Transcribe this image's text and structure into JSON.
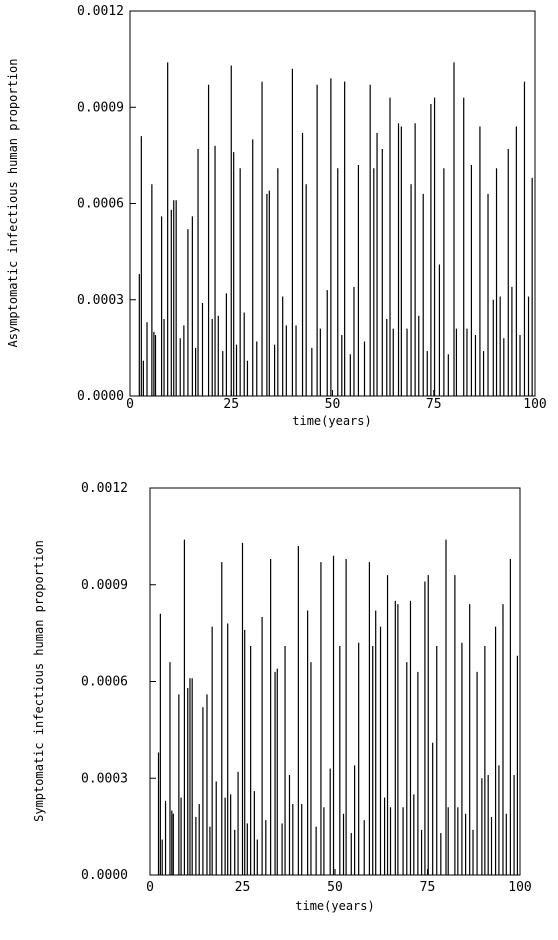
{
  "chart_data": [
    {
      "type": "line",
      "title": "",
      "xlabel": "time(years)",
      "ylabel": "Asymptomatic infectious human proportion",
      "xlim": [
        0,
        100
      ],
      "ylim": [
        0,
        0.0012
      ],
      "grid": false,
      "xticks": [
        "0",
        "25",
        "50",
        "75",
        "100"
      ],
      "yticks": [
        "0.0000",
        "0.0003",
        "0.0006",
        "0.0009",
        "0.0012"
      ],
      "series": [
        {
          "x": [
            2.3,
            2.8,
            3.3,
            4.2,
            5.4,
            5.9,
            6.3,
            7.8,
            8.4,
            9.3,
            10.2,
            10.8,
            11.4,
            12.4,
            13.3,
            14.3,
            15.4,
            16.2,
            16.8,
            17.9,
            19.4,
            20.3,
            21.0,
            21.8,
            22.9,
            23.8,
            25.0,
            25.6,
            26.3,
            27.2,
            28.2,
            29.0,
            30.3,
            31.3,
            32.6,
            33.8,
            34.4,
            35.7,
            36.5,
            37.7,
            38.6,
            40.1,
            41.0,
            42.6,
            43.5,
            44.9,
            46.2,
            47.0,
            48.7,
            49.6,
            51.3,
            52.3,
            53.0,
            54.4,
            55.3,
            56.4,
            57.9,
            59.3,
            60.2,
            61.0,
            62.3,
            63.4,
            64.2,
            65.0,
            66.3,
            67.0,
            68.4,
            69.4,
            70.4,
            71.3,
            72.4,
            73.4,
            74.3,
            75.2,
            76.4,
            77.5,
            78.6,
            80.0,
            80.6,
            82.4,
            83.2,
            84.3,
            85.3,
            86.4,
            87.3,
            88.4,
            89.7,
            90.5,
            91.4,
            92.3,
            93.4,
            94.3,
            95.4,
            96.3,
            97.4,
            98.4,
            99.3
          ],
          "y": [
            0.00038,
            0.00081,
            0.00011,
            0.00023,
            0.00066,
            0.0002,
            0.00019,
            0.00056,
            0.00024,
            0.00104,
            0.00058,
            0.00061,
            0.00061,
            0.00018,
            0.00022,
            0.00052,
            0.00056,
            0.00015,
            0.00077,
            0.00029,
            0.00097,
            0.00024,
            0.00078,
            0.00025,
            0.00014,
            0.00032,
            0.00103,
            0.00076,
            0.00016,
            0.00071,
            0.00026,
            0.00011,
            0.0008,
            0.00017,
            0.00098,
            0.00063,
            0.00064,
            0.00016,
            0.00071,
            0.00031,
            0.00022,
            0.00102,
            0.00022,
            0.00082,
            0.00066,
            0.00015,
            0.00097,
            0.00021,
            0.00033,
            0.00099,
            0.00071,
            0.00019,
            0.00098,
            0.00013,
            0.00034,
            0.00072,
            0.00017,
            0.00097,
            0.00071,
            0.00082,
            0.00077,
            0.00024,
            0.00093,
            0.00021,
            0.00085,
            0.00084,
            0.00021,
            0.00066,
            0.00085,
            0.00025,
            0.00063,
            0.00014,
            0.00091,
            0.00093,
            0.00041,
            0.00071,
            0.00013,
            0.00104,
            0.00021,
            0.00093,
            0.00021,
            0.00072,
            0.00019,
            0.00084,
            0.00014,
            0.00063,
            0.0003,
            0.00071,
            0.00031,
            0.00018,
            0.00077,
            0.00034,
            0.00084,
            0.00019,
            0.00098,
            0.00031,
            0.00068
          ]
        }
      ]
    },
    {
      "type": "line",
      "title": "",
      "xlabel": "time(years)",
      "ylabel": "Symptomatic infectious human proportion",
      "xlim": [
        0,
        100
      ],
      "ylim": [
        0,
        0.0012
      ],
      "grid": false,
      "xticks": [
        "0",
        "25",
        "50",
        "75",
        "100"
      ],
      "yticks": [
        "0.0000",
        "0.0003",
        "0.0006",
        "0.0009",
        "0.0012"
      ],
      "series": [
        {
          "x": [
            2.3,
            2.8,
            3.3,
            4.2,
            5.4,
            5.9,
            6.3,
            7.8,
            8.4,
            9.3,
            10.2,
            10.8,
            11.4,
            12.4,
            13.3,
            14.3,
            15.4,
            16.2,
            16.8,
            17.9,
            19.4,
            20.3,
            21.0,
            21.8,
            22.9,
            23.8,
            25.0,
            25.6,
            26.3,
            27.2,
            28.2,
            29.0,
            30.3,
            31.3,
            32.6,
            33.8,
            34.4,
            35.7,
            36.5,
            37.7,
            38.6,
            40.1,
            41.0,
            42.6,
            43.5,
            44.9,
            46.2,
            47.0,
            48.7,
            49.6,
            51.3,
            52.3,
            53.0,
            54.4,
            55.3,
            56.4,
            57.9,
            59.3,
            60.2,
            61.0,
            62.3,
            63.4,
            64.2,
            65.0,
            66.3,
            67.0,
            68.4,
            69.4,
            70.4,
            71.3,
            72.4,
            73.4,
            74.3,
            75.2,
            76.4,
            77.5,
            78.6,
            80.0,
            80.6,
            82.4,
            83.2,
            84.3,
            85.3,
            86.4,
            87.3,
            88.4,
            89.7,
            90.5,
            91.4,
            92.3,
            93.4,
            94.3,
            95.4,
            96.3,
            97.4,
            98.4,
            99.3
          ],
          "y": [
            0.00038,
            0.00081,
            0.00011,
            0.00023,
            0.00066,
            0.0002,
            0.00019,
            0.00056,
            0.00024,
            0.00104,
            0.00058,
            0.00061,
            0.00061,
            0.00018,
            0.00022,
            0.00052,
            0.00056,
            0.00015,
            0.00077,
            0.00029,
            0.00097,
            0.00024,
            0.00078,
            0.00025,
            0.00014,
            0.00032,
            0.00103,
            0.00076,
            0.00016,
            0.00071,
            0.00026,
            0.00011,
            0.0008,
            0.00017,
            0.00098,
            0.00063,
            0.00064,
            0.00016,
            0.00071,
            0.00031,
            0.00022,
            0.00102,
            0.00022,
            0.00082,
            0.00066,
            0.00015,
            0.00097,
            0.00021,
            0.00033,
            0.00099,
            0.00071,
            0.00019,
            0.00098,
            0.00013,
            0.00034,
            0.00072,
            0.00017,
            0.00097,
            0.00071,
            0.00082,
            0.00077,
            0.00024,
            0.00093,
            0.00021,
            0.00085,
            0.00084,
            0.00021,
            0.00066,
            0.00085,
            0.00025,
            0.00063,
            0.00014,
            0.00091,
            0.00093,
            0.00041,
            0.00071,
            0.00013,
            0.00104,
            0.00021,
            0.00093,
            0.00021,
            0.00072,
            0.00019,
            0.00084,
            0.00014,
            0.00063,
            0.0003,
            0.00071,
            0.00031,
            0.00018,
            0.00077,
            0.00034,
            0.00084,
            0.00019,
            0.00098,
            0.00031,
            0.00068
          ]
        }
      ]
    }
  ]
}
